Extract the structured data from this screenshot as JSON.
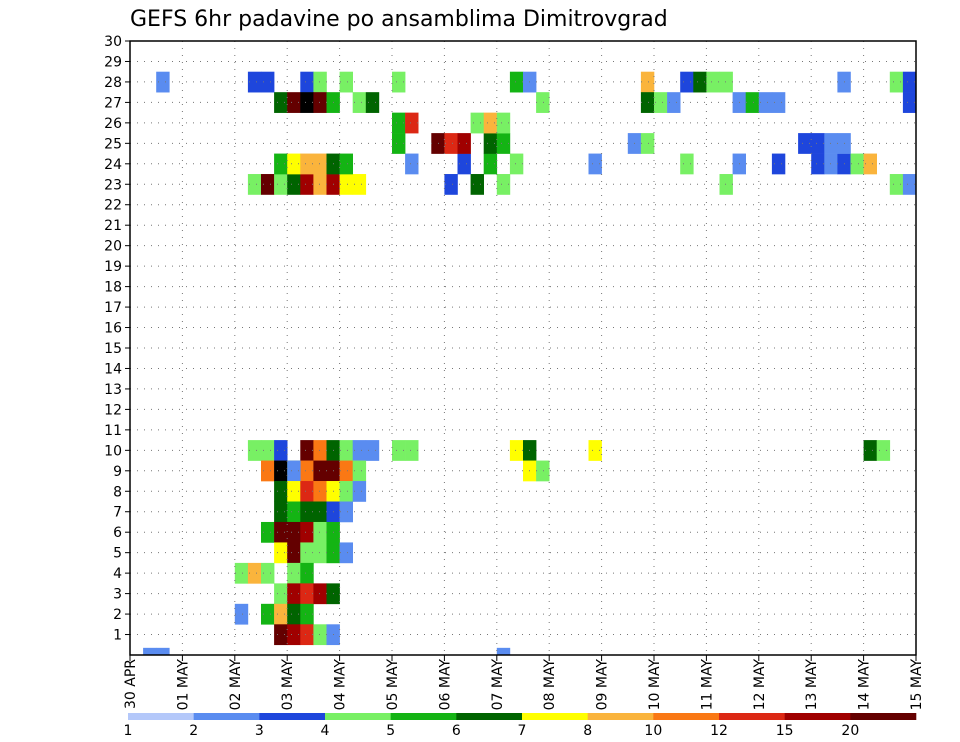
{
  "chart_data": {
    "type": "heatmap",
    "title": "GEFS 6hr padavine po ansamblima Dimitrovgrad",
    "xlabel": "",
    "ylabel": "",
    "x_ticks": [
      "30 APR",
      "01 MAY",
      "02 MAY",
      "03 MAY",
      "04 MAY",
      "05 MAY",
      "06 MAY",
      "07 MAY",
      "08 MAY",
      "09 MAY",
      "10 MAY",
      "11 MAY",
      "12 MAY",
      "13 MAY",
      "14 MAY",
      "15 MAY"
    ],
    "y_ticks": [
      "1",
      "2",
      "3",
      "4",
      "5",
      "6",
      "7",
      "8",
      "9",
      "10",
      "11",
      "12",
      "13",
      "14",
      "15",
      "16",
      "17",
      "18",
      "19",
      "20",
      "21",
      "22",
      "23",
      "24",
      "25",
      "26",
      "27",
      "28",
      "29",
      "30"
    ],
    "time_steps": 60,
    "members": 30,
    "grid": "dotted",
    "legend": {
      "placement": "bottom",
      "labels": [
        "1",
        "2",
        "3",
        "4",
        "5",
        "6",
        "7",
        "8",
        "10",
        "12",
        "15",
        "20"
      ],
      "colors": [
        "#b4c8fa",
        "#5a8cf0",
        "#1e46dc",
        "#78f064",
        "#14b414",
        "#006400",
        "#ffff00",
        "#fab43c",
        "#fa7814",
        "#dc2814",
        "#a00000",
        "#640000"
      ]
    },
    "cells": [
      [
        1,
        0,
        1
      ],
      [
        2,
        0,
        1
      ],
      [
        28,
        0,
        1
      ],
      [
        9,
        10,
        3
      ],
      [
        10,
        10,
        3
      ],
      [
        11,
        10,
        2
      ],
      [
        13,
        10,
        11
      ],
      [
        14,
        10,
        8
      ],
      [
        15,
        10,
        5
      ],
      [
        16,
        10,
        3
      ],
      [
        17,
        10,
        1
      ],
      [
        18,
        10,
        1
      ],
      [
        20,
        10,
        3
      ],
      [
        21,
        10,
        3
      ],
      [
        29,
        10,
        6
      ],
      [
        30,
        10,
        5
      ],
      [
        35,
        10,
        6
      ],
      [
        56,
        10,
        5
      ],
      [
        57,
        10,
        3
      ],
      [
        10,
        9,
        8
      ],
      [
        11,
        9,
        12
      ],
      [
        12,
        9,
        5
      ],
      [
        13,
        9,
        8
      ],
      [
        14,
        9,
        11
      ],
      [
        15,
        9,
        11
      ],
      [
        16,
        9,
        8
      ],
      [
        17,
        9,
        3
      ],
      [
        30,
        9,
        6
      ],
      [
        31,
        9,
        3
      ],
      [
        11,
        8,
        5
      ],
      [
        12,
        9,
        1
      ],
      [
        12,
        8,
        6
      ],
      [
        13,
        8,
        9
      ],
      [
        14,
        8,
        8
      ],
      [
        15,
        8,
        6
      ],
      [
        16,
        8,
        3
      ],
      [
        17,
        8,
        1
      ],
      [
        11,
        7,
        5
      ],
      [
        12,
        7,
        4
      ],
      [
        13,
        7,
        5
      ],
      [
        14,
        7,
        5
      ],
      [
        15,
        7,
        2
      ],
      [
        16,
        7,
        1
      ],
      [
        10,
        6,
        4
      ],
      [
        11,
        6,
        11
      ],
      [
        12,
        6,
        11
      ],
      [
        13,
        6,
        10
      ],
      [
        14,
        6,
        3
      ],
      [
        15,
        6,
        4
      ],
      [
        11,
        5,
        6
      ],
      [
        12,
        5,
        11
      ],
      [
        13,
        5,
        3
      ],
      [
        14,
        5,
        3
      ],
      [
        15,
        5,
        4
      ],
      [
        16,
        5,
        1
      ],
      [
        8,
        4,
        3
      ],
      [
        9,
        4,
        7
      ],
      [
        10,
        4,
        3
      ],
      [
        12,
        4,
        3
      ],
      [
        13,
        4,
        4
      ],
      [
        11,
        3,
        3
      ],
      [
        12,
        3,
        10
      ],
      [
        13,
        3,
        9
      ],
      [
        14,
        3,
        10
      ],
      [
        15,
        3,
        5
      ],
      [
        8,
        2,
        1
      ],
      [
        10,
        2,
        4
      ],
      [
        11,
        2,
        7
      ],
      [
        12,
        2,
        5
      ],
      [
        13,
        2,
        4
      ],
      [
        11,
        1,
        11
      ],
      [
        12,
        1,
        10
      ],
      [
        13,
        1,
        9
      ],
      [
        14,
        1,
        3
      ],
      [
        15,
        1,
        1
      ],
      [
        2,
        28,
        1
      ],
      [
        9,
        28,
        2
      ],
      [
        10,
        28,
        2
      ],
      [
        13,
        28,
        2
      ],
      [
        14,
        28,
        3
      ],
      [
        16,
        28,
        3
      ],
      [
        20,
        28,
        3
      ],
      [
        29,
        28,
        4
      ],
      [
        30,
        28,
        1
      ],
      [
        39,
        28,
        7
      ],
      [
        42,
        28,
        2
      ],
      [
        43,
        28,
        5
      ],
      [
        44,
        28,
        3
      ],
      [
        45,
        28,
        3
      ],
      [
        54,
        28,
        1
      ],
      [
        58,
        28,
        3
      ],
      [
        59,
        28,
        2
      ],
      [
        11,
        27,
        5
      ],
      [
        12,
        27,
        11
      ],
      [
        13,
        27,
        12
      ],
      [
        14,
        27,
        11
      ],
      [
        15,
        27,
        4
      ],
      [
        17,
        27,
        3
      ],
      [
        18,
        27,
        5
      ],
      [
        31,
        27,
        3
      ],
      [
        39,
        27,
        5
      ],
      [
        40,
        27,
        3
      ],
      [
        41,
        27,
        1
      ],
      [
        46,
        27,
        1
      ],
      [
        47,
        27,
        4
      ],
      [
        48,
        27,
        1
      ],
      [
        49,
        27,
        1
      ],
      [
        59,
        27,
        2
      ],
      [
        9,
        23,
        3
      ],
      [
        10,
        23,
        11
      ],
      [
        11,
        23,
        3
      ],
      [
        12,
        23,
        5
      ],
      [
        13,
        23,
        10
      ],
      [
        14,
        23,
        7
      ],
      [
        15,
        23,
        10
      ],
      [
        16,
        23,
        6
      ],
      [
        17,
        23,
        6
      ],
      [
        24,
        23,
        2
      ],
      [
        26,
        23,
        5
      ],
      [
        28,
        23,
        3
      ],
      [
        45,
        23,
        3
      ],
      [
        58,
        23,
        3
      ],
      [
        59,
        23,
        1
      ],
      [
        11,
        24,
        4
      ],
      [
        12,
        24,
        6
      ],
      [
        13,
        24,
        7
      ],
      [
        14,
        24,
        7
      ],
      [
        15,
        24,
        5
      ],
      [
        16,
        24,
        4
      ],
      [
        21,
        24,
        1
      ],
      [
        25,
        24,
        2
      ],
      [
        27,
        24,
        4
      ],
      [
        29,
        24,
        3
      ],
      [
        35,
        24,
        1
      ],
      [
        42,
        24,
        3
      ],
      [
        46,
        24,
        1
      ],
      [
        49,
        24,
        2
      ],
      [
        52,
        24,
        2
      ],
      [
        53,
        24,
        1
      ],
      [
        54,
        24,
        2
      ],
      [
        55,
        24,
        3
      ],
      [
        56,
        24,
        7
      ],
      [
        20,
        25,
        4
      ],
      [
        23,
        25,
        11
      ],
      [
        24,
        25,
        9
      ],
      [
        25,
        25,
        10
      ],
      [
        27,
        25,
        5
      ],
      [
        28,
        25,
        4
      ],
      [
        38,
        25,
        1
      ],
      [
        39,
        25,
        3
      ],
      [
        51,
        25,
        2
      ],
      [
        52,
        25,
        2
      ],
      [
        53,
        25,
        1
      ],
      [
        54,
        25,
        1
      ],
      [
        20,
        26,
        4
      ],
      [
        21,
        26,
        9
      ],
      [
        26,
        26,
        3
      ],
      [
        27,
        26,
        7
      ],
      [
        28,
        26,
        3
      ]
    ]
  }
}
